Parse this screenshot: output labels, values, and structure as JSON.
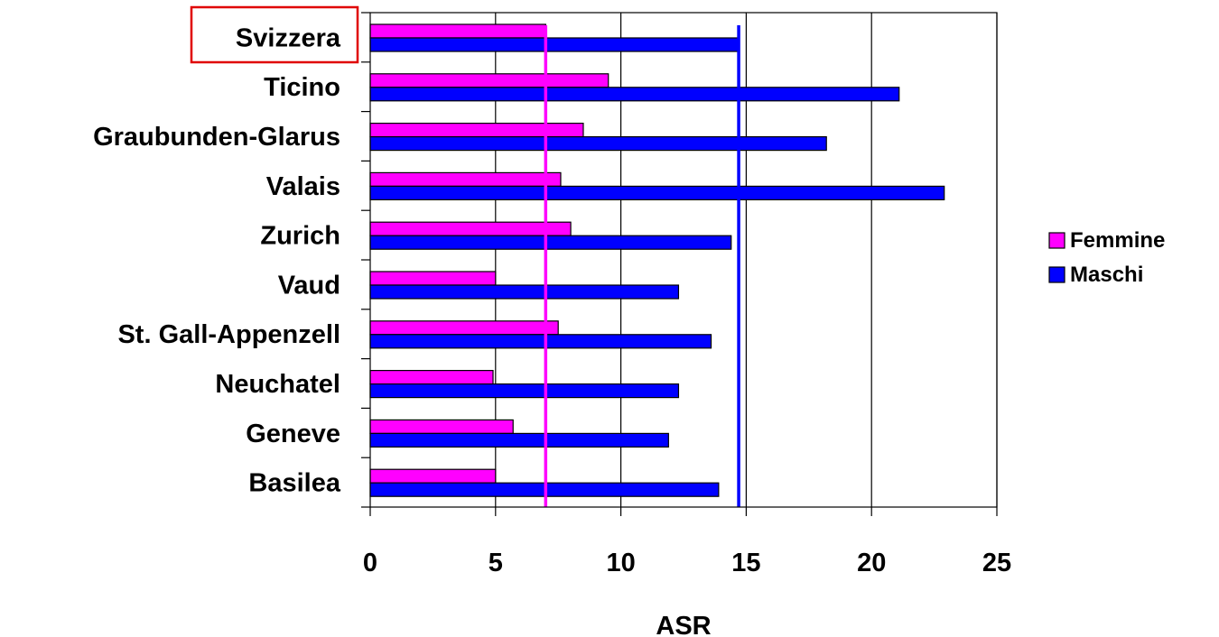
{
  "chart_data": {
    "type": "bar",
    "orientation": "horizontal",
    "categories": [
      "Svizzera",
      "Ticino",
      "Graubunden-Glarus",
      "Valais",
      "Zurich",
      "Vaud",
      "St. Gall-Appenzell",
      "Neuchatel",
      "Geneve",
      "Basilea"
    ],
    "series": [
      {
        "name": "Femmine",
        "color": "#ff00ff",
        "values": [
          7.0,
          9.5,
          8.5,
          7.6,
          8.0,
          5.0,
          7.5,
          4.9,
          5.7,
          5.0
        ]
      },
      {
        "name": "Maschi",
        "color": "#0000ff",
        "values": [
          14.7,
          21.1,
          18.2,
          22.9,
          14.4,
          12.3,
          13.6,
          12.3,
          11.9,
          13.9
        ]
      }
    ],
    "reference_lines": [
      {
        "series": "Femmine",
        "value": 7.0,
        "color": "#ff00ff"
      },
      {
        "series": "Maschi",
        "value": 14.7,
        "color": "#0000ff"
      }
    ],
    "highlighted_category": "Svizzera",
    "highlight_color": "#e00000",
    "title": "",
    "xlabel": "ASR",
    "ylabel": "",
    "xlim": [
      0,
      25
    ],
    "xticks": [
      "0",
      "5",
      "10",
      "15",
      "20",
      "25"
    ],
    "xtick_values": [
      0,
      5,
      10,
      15,
      20,
      25
    ],
    "grid": "vertical",
    "legend_position": "right"
  }
}
